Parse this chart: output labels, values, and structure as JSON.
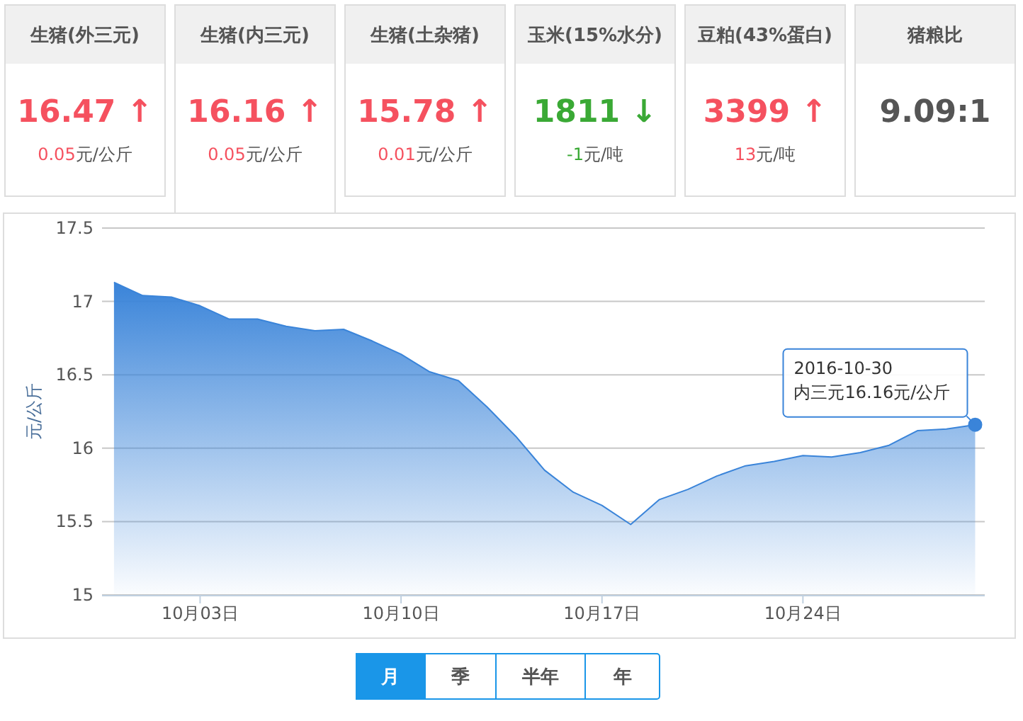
{
  "chart_data": [
    {
      "type": "other",
      "categories": [
        "16.47 ↑",
        "16.16 ↑",
        "15.78 ↑",
        "1811 ↓",
        "3399 ↑",
        "9.09:1"
      ],
      "annotations": [
        "生猪(外三元)",
        "生猪(内三元)",
        "生猪(土杂猪)",
        "玉米(15%水分)",
        "豆粕(43%蛋白)",
        "猪粮比",
        "0.05元/公斤",
        "0.05元/公斤",
        "0.01元/公斤",
        "-1元/吨",
        "13元/吨"
      ],
      "colors": [
        "#f5515f",
        "#f5515f",
        "#f5515f",
        "#3aa935",
        "#f5515f",
        "#555555"
      ]
    },
    {
      "type": "area",
      "ylabel": "元/公斤",
      "x": [
        "2016-09-30",
        "2016-10-01",
        "2016-10-02",
        "2016-10-03",
        "2016-10-04",
        "2016-10-05",
        "2016-10-06",
        "2016-10-07",
        "2016-10-08",
        "2016-10-09",
        "2016-10-10",
        "2016-10-11",
        "2016-10-12",
        "2016-10-13",
        "2016-10-14",
        "2016-10-15",
        "2016-10-16",
        "2016-10-17",
        "2016-10-18",
        "2016-10-19",
        "2016-10-20",
        "2016-10-21",
        "2016-10-22",
        "2016-10-23",
        "2016-10-24",
        "2016-10-25",
        "2016-10-26",
        "2016-10-27",
        "2016-10-28",
        "2016-10-29",
        "2016-10-30"
      ],
      "series": [
        {
          "color": "#3a84d9",
          "values": [
            17.13,
            17.04,
            17.03,
            16.97,
            16.88,
            16.88,
            16.83,
            16.8,
            16.81,
            16.73,
            16.64,
            16.52,
            16.46,
            16.28,
            16.08,
            15.85,
            15.7,
            15.61,
            15.48,
            15.65,
            15.72,
            15.81,
            15.88,
            15.91,
            15.95,
            15.94,
            15.97,
            16.02,
            16.12,
            16.13,
            16.16
          ]
        }
      ],
      "xlim": [
        "2016-09-29T14:00",
        "2016-10-30T08:00"
      ],
      "xticks": [
        {
          "value": "2016-10-03",
          "label": "10月03日"
        },
        {
          "value": "2016-10-10",
          "label": "10月10日"
        },
        {
          "value": "2016-10-17",
          "label": "10月17日"
        },
        {
          "value": "2016-10-24",
          "label": "10月24日"
        }
      ],
      "ylim": [
        15,
        17.5
      ],
      "yticks": [
        15,
        15.5,
        16,
        16.5,
        17,
        17.5
      ],
      "grid": "y",
      "annotations": [
        {
          "text": "2016-10-30\n内三元16.16元/公斤",
          "x": "2016-10-30",
          "y": 16.16
        }
      ]
    },
    {
      "type": "other",
      "categories": [
        "月",
        "季",
        "半年",
        "年"
      ]
    }
  ]
}
